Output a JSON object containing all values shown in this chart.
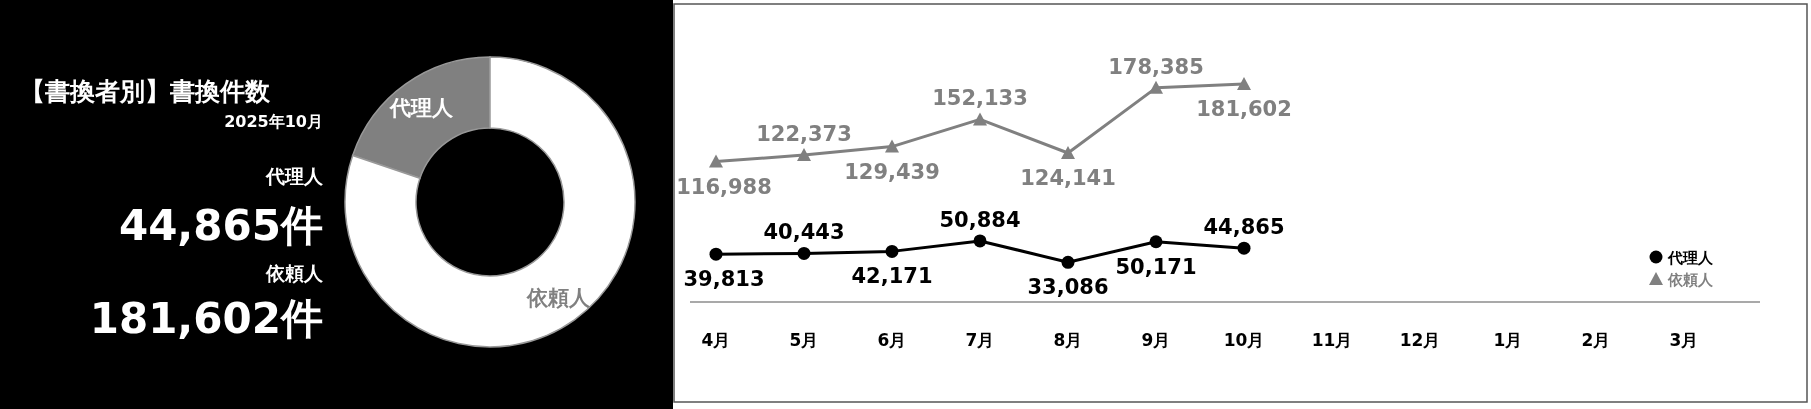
{
  "chart_data": [
    {
      "type": "donut",
      "title": "【書換者別】書換件数",
      "subtitle": "2025年10月",
      "annotations": [
        "代理人",
        "44,865件",
        "依頼人",
        "181,602件"
      ],
      "categories": [
        "代理人",
        "依頼人"
      ],
      "values": [
        19.8,
        80.2
      ],
      "colors": [
        "#808080",
        "#ffffff"
      ]
    },
    {
      "type": "line",
      "categories": [
        "4月",
        "5月",
        "6月",
        "7月",
        "8月",
        "9月",
        "10月",
        "11月",
        "12月",
        "1月",
        "2月",
        "3月"
      ],
      "series": [
        {
          "name": "代理人",
          "color": "#000000",
          "marker": "circle",
          "values": [
            39813,
            40443,
            42171,
            50884,
            33086,
            50171,
            44865,
            null,
            null,
            null,
            null,
            null
          ],
          "value_labels": [
            "39,813",
            "40,443",
            "42,171",
            "50,884",
            "33,086",
            "50,171",
            "44,865",
            null,
            null,
            null,
            null,
            null
          ]
        },
        {
          "name": "依頼人",
          "color": "#808080",
          "marker": "triangle",
          "values": [
            116988,
            122373,
            129439,
            152133,
            124141,
            178385,
            181602,
            null,
            null,
            null,
            null,
            null
          ],
          "value_labels": [
            "116,988",
            "122,373",
            "129,439",
            "152,133",
            "124,141",
            "178,385",
            "181,602",
            null,
            null,
            null,
            null,
            null
          ]
        }
      ],
      "legend": "bottom right"
    }
  ]
}
